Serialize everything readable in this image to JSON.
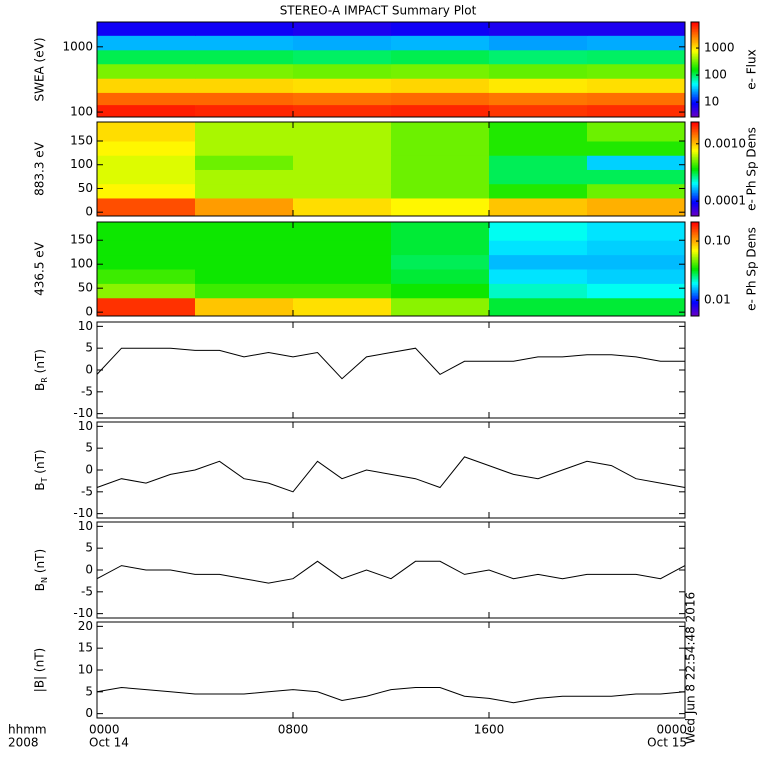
{
  "title": "STEREO-A IMPACT Summary Plot",
  "stamp": "Wed Jun  8 22:54:48 2016",
  "x_axis": {
    "xlim": [
      0,
      24
    ],
    "xticks": [
      {
        "value": 0,
        "label": "0000"
      },
      {
        "value": 8,
        "label": "0800"
      },
      {
        "value": 16,
        "label": "1600"
      },
      {
        "value": 24,
        "label": "0000"
      }
    ],
    "dates": [
      {
        "value": 0,
        "label": "Oct 14"
      },
      {
        "value": 24,
        "label": "Oct 15"
      }
    ],
    "row_labels": [
      "hhmm",
      "2008"
    ]
  },
  "chart_data": [
    {
      "type": "heatmap",
      "ylabel": "SWEA (eV)",
      "ylog": true,
      "ylim": [
        84,
        2400
      ],
      "yticks": [
        100,
        1000
      ],
      "xbins": [
        0,
        4,
        8,
        12,
        16,
        20,
        24
      ],
      "ybins": [
        84,
        130,
        200,
        330,
        550,
        900,
        1500,
        2400
      ],
      "z": [
        [
          7000,
          6500,
          6000,
          6500,
          5500,
          6000
        ],
        [
          3500,
          3500,
          3200,
          3400,
          3000,
          3200
        ],
        [
          1200,
          1200,
          1100,
          1200,
          1000,
          1100
        ],
        [
          350,
          350,
          320,
          340,
          300,
          320
        ],
        [
          110,
          110,
          100,
          110,
          95,
          100
        ],
        [
          30,
          30,
          28,
          30,
          26,
          28
        ],
        [
          8,
          8,
          7,
          8,
          7,
          7
        ]
      ],
      "colorbar": {
        "label": "e- Flux",
        "lim": [
          2.8,
          9200
        ],
        "ticks": [
          10,
          100,
          1000
        ]
      }
    },
    {
      "type": "heatmap",
      "ylabel": "883.3 eV",
      "ylog": false,
      "ylim": [
        -8,
        190
      ],
      "yticks": [
        0,
        50,
        100,
        150
      ],
      "xbins": [
        0,
        4,
        8,
        12,
        16,
        20,
        24
      ],
      "ybins": [
        -8,
        30,
        60,
        90,
        120,
        150,
        190
      ],
      "z": [
        [
          0.0017,
          0.0012,
          0.0009,
          0.0008,
          0.001,
          0.0011
        ],
        [
          0.0008,
          0.0006,
          0.0006,
          0.0005,
          0.0004,
          0.0005
        ],
        [
          0.0007,
          0.0006,
          0.0006,
          0.0005,
          0.0003,
          0.0003
        ],
        [
          0.0007,
          0.0005,
          0.0006,
          0.0005,
          0.0003,
          0.00018
        ],
        [
          0.0008,
          0.0006,
          0.0006,
          0.0005,
          0.0004,
          0.0004
        ],
        [
          0.0009,
          0.0006,
          0.0006,
          0.0005,
          0.0004,
          0.0005
        ]
      ],
      "colorbar": {
        "label": "e- Ph Sp Dens",
        "lim": [
          5.5e-05,
          0.0024
        ],
        "ticks": [
          0.0001,
          {
            "value": 0.001,
            "label": "0.0010"
          }
        ]
      }
    },
    {
      "type": "heatmap",
      "ylabel": "436.5 eV",
      "ylog": false,
      "ylim": [
        -8,
        188
      ],
      "yticks": [
        0,
        50,
        100,
        150
      ],
      "xbins": [
        0,
        4,
        8,
        12,
        16,
        20,
        24
      ],
      "ybins": [
        -8,
        30,
        60,
        90,
        120,
        150,
        188
      ],
      "z": [
        [
          0.17,
          0.09,
          0.08,
          0.05,
          0.03,
          0.03
        ],
        [
          0.05,
          0.04,
          0.04,
          0.035,
          0.022,
          0.02
        ],
        [
          0.04,
          0.035,
          0.035,
          0.03,
          0.018,
          0.017
        ],
        [
          0.035,
          0.035,
          0.035,
          0.028,
          0.016,
          0.016
        ],
        [
          0.035,
          0.035,
          0.035,
          0.03,
          0.018,
          0.017
        ],
        [
          0.035,
          0.035,
          0.035,
          0.03,
          0.02,
          0.018
        ]
      ],
      "colorbar": {
        "label": "e- Ph Sp Dens",
        "lim": [
          0.0054,
          0.21
        ],
        "ticks": [
          0.01,
          {
            "value": 0.1,
            "label": "0.10"
          }
        ]
      }
    },
    {
      "type": "line",
      "ylabel": {
        "main": "B",
        "sub": "R",
        "unit": "(nT)"
      },
      "ylim": [
        -11,
        11
      ],
      "yticks": [
        -10,
        -5,
        0,
        5,
        10
      ],
      "color": "#000000",
      "x": [
        0,
        1,
        2,
        3,
        4,
        5,
        6,
        7,
        8,
        9,
        10,
        11,
        12,
        13,
        14,
        15,
        16,
        17,
        18,
        19,
        20,
        21,
        22,
        23,
        24
      ],
      "values": [
        -1,
        5,
        5,
        5,
        4.5,
        4.5,
        3,
        4,
        3,
        4,
        -2,
        3,
        4,
        5,
        -1,
        2,
        2,
        2,
        3,
        3,
        3.5,
        3.5,
        3,
        2,
        2
      ]
    },
    {
      "type": "line",
      "ylabel": {
        "main": "B",
        "sub": "T",
        "unit": "(nT)"
      },
      "ylim": [
        -11,
        11
      ],
      "yticks": [
        -10,
        -5,
        0,
        5,
        10
      ],
      "color": "#000000",
      "x": [
        0,
        1,
        2,
        3,
        4,
        5,
        6,
        7,
        8,
        9,
        10,
        11,
        12,
        13,
        14,
        15,
        16,
        17,
        18,
        19,
        20,
        21,
        22,
        23,
        24
      ],
      "values": [
        -4,
        -2,
        -3,
        -1,
        0,
        2,
        -2,
        -3,
        -5,
        2,
        -2,
        0,
        -1,
        -2,
        -4,
        3,
        1,
        -1,
        -2,
        0,
        2,
        1,
        -2,
        -3,
        -4
      ]
    },
    {
      "type": "line",
      "ylabel": {
        "main": "B",
        "sub": "N",
        "unit": "(nT)"
      },
      "ylim": [
        -11,
        11
      ],
      "yticks": [
        -10,
        -5,
        0,
        5,
        10
      ],
      "color": "#000000",
      "x": [
        0,
        1,
        2,
        3,
        4,
        5,
        6,
        7,
        8,
        9,
        10,
        11,
        12,
        13,
        14,
        15,
        16,
        17,
        18,
        19,
        20,
        21,
        22,
        23,
        24
      ],
      "values": [
        -2,
        1,
        0,
        0,
        -1,
        -1,
        -2,
        -3,
        -2,
        2,
        -2,
        0,
        -2,
        2,
        2,
        -1,
        0,
        -2,
        -1,
        -2,
        -1,
        -1,
        -1,
        -2,
        1
      ]
    },
    {
      "type": "line",
      "ylabel": "|B| (nT)",
      "ylim": [
        -1,
        21
      ],
      "yticks": [
        0,
        5,
        10,
        15,
        20
      ],
      "color": "#000000",
      "x": [
        0,
        1,
        2,
        3,
        4,
        5,
        6,
        7,
        8,
        9,
        10,
        11,
        12,
        13,
        14,
        15,
        16,
        17,
        18,
        19,
        20,
        21,
        22,
        23,
        24
      ],
      "values": [
        5,
        6,
        5.5,
        5,
        4.5,
        4.5,
        4.5,
        5,
        5.5,
        5,
        3,
        4,
        5.5,
        6,
        6,
        4,
        3.5,
        2.5,
        3.5,
        4,
        4,
        4,
        4.5,
        4.5,
        5
      ]
    }
  ]
}
